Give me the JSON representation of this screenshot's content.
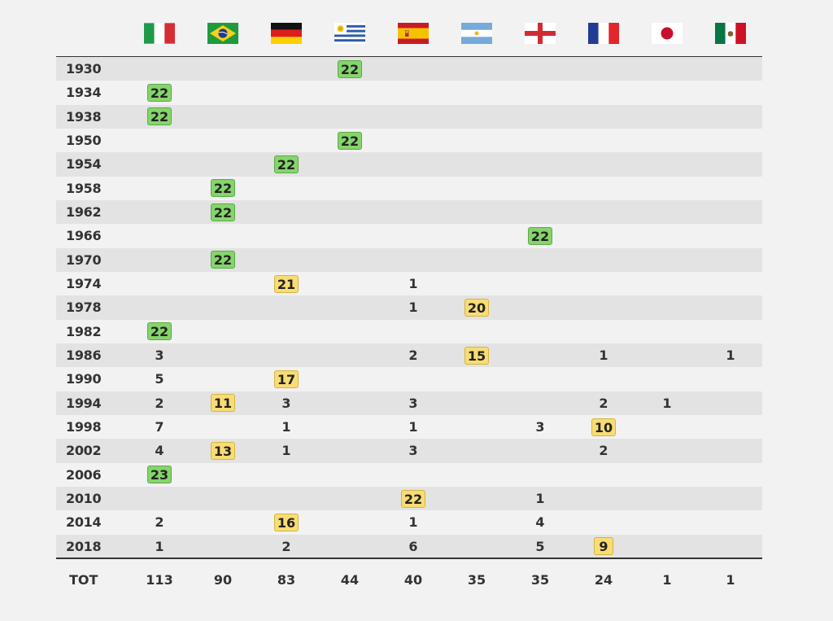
{
  "chart_data": {
    "type": "table",
    "countries": [
      {
        "icon": "italy-flag-icon"
      },
      {
        "icon": "brazil-flag-icon"
      },
      {
        "icon": "germany-flag-icon"
      },
      {
        "icon": "uruguay-flag-icon"
      },
      {
        "icon": "spain-flag-icon"
      },
      {
        "icon": "argentina-flag-icon"
      },
      {
        "icon": "england-flag-icon"
      },
      {
        "icon": "france-flag-icon"
      },
      {
        "icon": "japan-flag-icon"
      },
      {
        "icon": "mexico-flag-icon"
      }
    ],
    "rows": [
      {
        "year": "1930",
        "cells": [
          null,
          null,
          null,
          {
            "v": "22",
            "s": "win"
          },
          null,
          null,
          null,
          null,
          null,
          null
        ]
      },
      {
        "year": "1934",
        "cells": [
          {
            "v": "22",
            "s": "win"
          },
          null,
          null,
          null,
          null,
          null,
          null,
          null,
          null,
          null
        ]
      },
      {
        "year": "1938",
        "cells": [
          {
            "v": "22",
            "s": "win"
          },
          null,
          null,
          null,
          null,
          null,
          null,
          null,
          null,
          null
        ]
      },
      {
        "year": "1950",
        "cells": [
          null,
          null,
          null,
          {
            "v": "22",
            "s": "win"
          },
          null,
          null,
          null,
          null,
          null,
          null
        ]
      },
      {
        "year": "1954",
        "cells": [
          null,
          null,
          {
            "v": "22",
            "s": "win"
          },
          null,
          null,
          null,
          null,
          null,
          null,
          null
        ]
      },
      {
        "year": "1958",
        "cells": [
          null,
          {
            "v": "22",
            "s": "win"
          },
          null,
          null,
          null,
          null,
          null,
          null,
          null,
          null
        ]
      },
      {
        "year": "1962",
        "cells": [
          null,
          {
            "v": "22",
            "s": "win"
          },
          null,
          null,
          null,
          null,
          null,
          null,
          null,
          null
        ]
      },
      {
        "year": "1966",
        "cells": [
          null,
          null,
          null,
          null,
          null,
          null,
          {
            "v": "22",
            "s": "win"
          },
          null,
          null,
          null
        ]
      },
      {
        "year": "1970",
        "cells": [
          null,
          {
            "v": "22",
            "s": "win"
          },
          null,
          null,
          null,
          null,
          null,
          null,
          null,
          null
        ]
      },
      {
        "year": "1974",
        "cells": [
          null,
          null,
          {
            "v": "21",
            "s": "host"
          },
          null,
          {
            "v": "1"
          },
          null,
          null,
          null,
          null,
          null
        ]
      },
      {
        "year": "1978",
        "cells": [
          null,
          null,
          null,
          null,
          {
            "v": "1"
          },
          {
            "v": "20",
            "s": "host"
          },
          null,
          null,
          null,
          null
        ]
      },
      {
        "year": "1982",
        "cells": [
          {
            "v": "22",
            "s": "win"
          },
          null,
          null,
          null,
          null,
          null,
          null,
          null,
          null,
          null
        ]
      },
      {
        "year": "1986",
        "cells": [
          {
            "v": "3"
          },
          null,
          null,
          null,
          {
            "v": "2"
          },
          {
            "v": "15",
            "s": "host"
          },
          null,
          {
            "v": "1"
          },
          null,
          {
            "v": "1"
          }
        ]
      },
      {
        "year": "1990",
        "cells": [
          {
            "v": "5"
          },
          null,
          {
            "v": "17",
            "s": "host"
          },
          null,
          null,
          null,
          null,
          null,
          null,
          null
        ]
      },
      {
        "year": "1994",
        "cells": [
          {
            "v": "2"
          },
          {
            "v": "11",
            "s": "host"
          },
          {
            "v": "3"
          },
          null,
          {
            "v": "3"
          },
          null,
          null,
          {
            "v": "2"
          },
          {
            "v": "1"
          },
          null
        ]
      },
      {
        "year": "1998",
        "cells": [
          {
            "v": "7"
          },
          null,
          {
            "v": "1"
          },
          null,
          {
            "v": "1"
          },
          null,
          {
            "v": "3"
          },
          {
            "v": "10",
            "s": "host"
          },
          null,
          null
        ]
      },
      {
        "year": "2002",
        "cells": [
          {
            "v": "4"
          },
          {
            "v": "13",
            "s": "host"
          },
          {
            "v": "1"
          },
          null,
          {
            "v": "3"
          },
          null,
          null,
          {
            "v": "2"
          },
          null,
          null
        ]
      },
      {
        "year": "2006",
        "cells": [
          {
            "v": "23",
            "s": "win"
          },
          null,
          null,
          null,
          null,
          null,
          null,
          null,
          null,
          null
        ]
      },
      {
        "year": "2010",
        "cells": [
          null,
          null,
          null,
          null,
          {
            "v": "22",
            "s": "host"
          },
          null,
          {
            "v": "1"
          },
          null,
          null,
          null
        ]
      },
      {
        "year": "2014",
        "cells": [
          {
            "v": "2"
          },
          null,
          {
            "v": "16",
            "s": "host"
          },
          null,
          {
            "v": "1"
          },
          null,
          {
            "v": "4"
          },
          null,
          null,
          null
        ]
      },
      {
        "year": "2018",
        "cells": [
          {
            "v": "1"
          },
          null,
          {
            "v": "2"
          },
          null,
          {
            "v": "6"
          },
          null,
          {
            "v": "5"
          },
          {
            "v": "9",
            "s": "host"
          },
          null,
          null
        ]
      }
    ],
    "totals_label": "TOT",
    "totals": [
      "113",
      "90",
      "83",
      "44",
      "40",
      "35",
      "35",
      "24",
      "1",
      "1"
    ],
    "colors": {
      "row_shade": "#e3e3e3",
      "winner_badge": "#86d46c",
      "highlight_badge": "#f8dc74",
      "rule": "#333333"
    }
  }
}
